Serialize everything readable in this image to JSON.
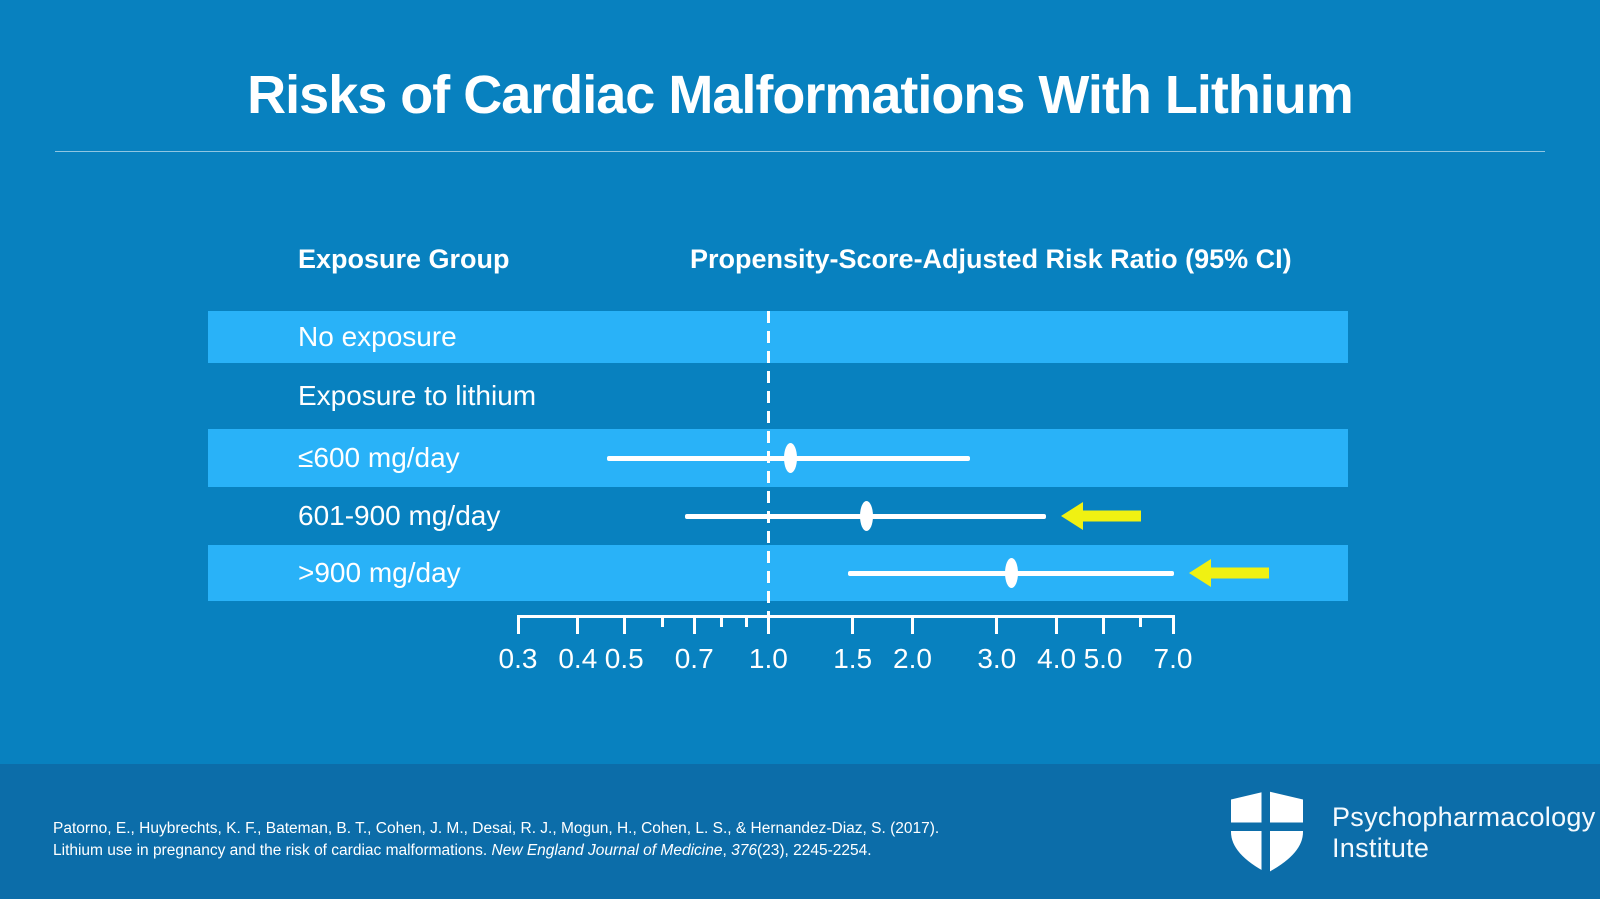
{
  "slide": {
    "title": "Risks of Cardiac Malformations With Lithium"
  },
  "table": {
    "exposure_header": "Exposure Group",
    "rr_header": "Propensity-Score-Adjusted Risk Ratio (95% CI)"
  },
  "chart_data": {
    "type": "forest",
    "x_scale": "log",
    "x_min": 0.3,
    "x_max": 7.0,
    "reference_line": 1.0,
    "ticks_major": [
      0.3,
      0.4,
      0.5,
      0.7,
      1.0,
      1.5,
      2.0,
      3.0,
      4.0,
      5.0,
      7.0
    ],
    "tick_labels": [
      "0.3",
      "0.4",
      "0.5",
      "0.7",
      "1.0",
      "1.5",
      "2.0",
      "3.0",
      "4.0",
      "5.0",
      "7.0"
    ],
    "ticks_minor": [
      0.6,
      0.8,
      0.9,
      6.0
    ],
    "xlabel": "",
    "rows": [
      {
        "label": "No exposure",
        "shade": "light",
        "estimate": null,
        "highlight_arrow": false
      },
      {
        "label": "Exposure to lithium",
        "shade": "dark",
        "estimate": null,
        "highlight_arrow": false
      },
      {
        "label": "≤600 mg/day",
        "shade": "light",
        "estimate": {
          "rr": 1.11,
          "ci_low": 0.46,
          "ci_high": 2.64
        },
        "highlight_arrow": false
      },
      {
        "label": "601-900 mg/day",
        "shade": "dark",
        "estimate": {
          "rr": 1.6,
          "ci_low": 0.67,
          "ci_high": 3.8
        },
        "highlight_arrow": true
      },
      {
        "label": ">900 mg/day",
        "shade": "light",
        "estimate": {
          "rr": 3.22,
          "ci_low": 1.47,
          "ci_high": 7.02
        },
        "highlight_arrow": true
      }
    ]
  },
  "colors": {
    "background": "#0881BF",
    "band_light": "#29B2F8",
    "footer_background": "#0C6DA9",
    "arrow_yellow": "#F0F112",
    "text": "#FFFFFF"
  },
  "footer": {
    "citation_line1": "Patorno, E., Huybrechts, K. F., Bateman, B. T., Cohen, J. M., Desai, R. J., Mogun, H., Cohen, L. S., & Hernandez-Diaz, S. (2017).",
    "citation_line2_prefix": "Lithium use in pregnancy and the risk of cardiac malformations. ",
    "citation_line2_journal": "New England Journal of Medicine",
    "citation_line2_sep": ", ",
    "citation_line2_volume": "376",
    "citation_line2_suffix": "(23), 2245-2254.",
    "logo_line1": "Psychopharmacology",
    "logo_line2": "Institute"
  }
}
